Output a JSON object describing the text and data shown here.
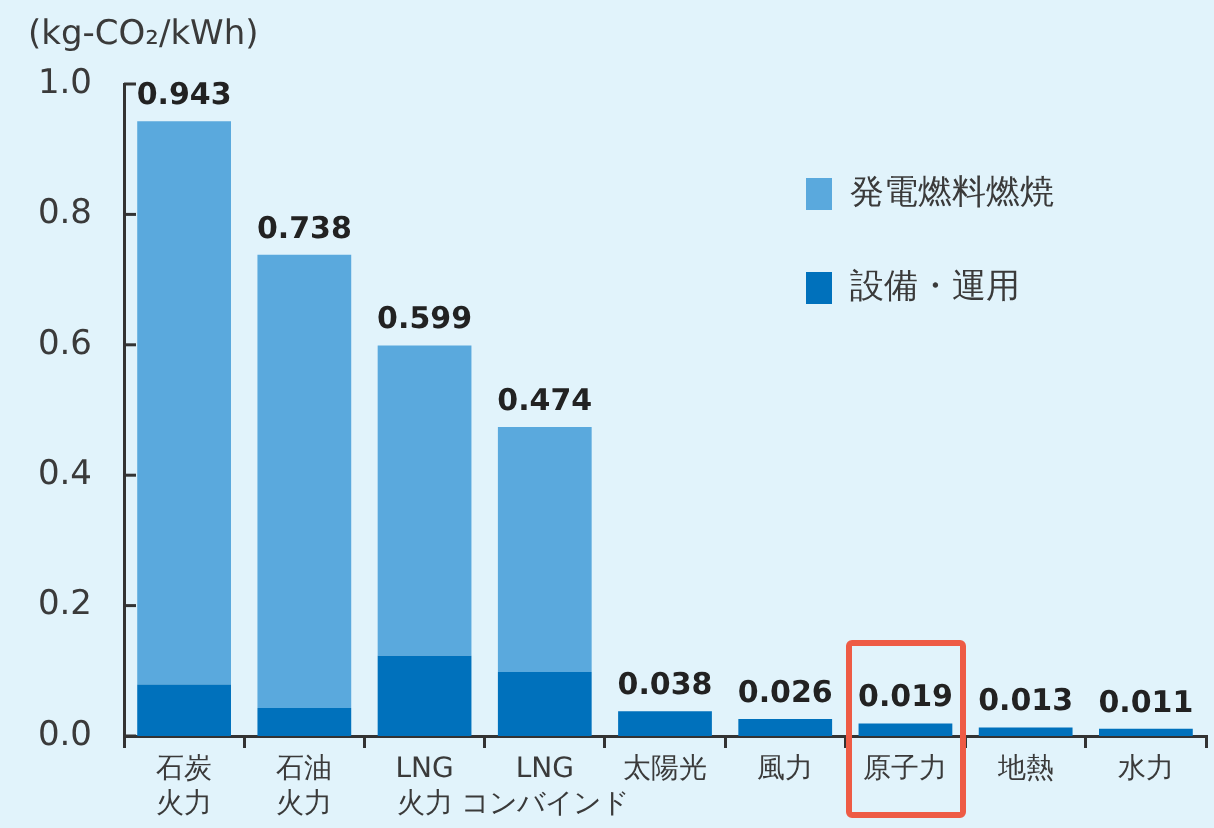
{
  "chart_data": {
    "type": "bar",
    "ylabel": "(kg-CO₂/kWh)",
    "categories": [
      "石炭火力",
      "石油火力",
      "LNG火力",
      "LNGコンバインド",
      "太陽光",
      "風力",
      "原子力",
      "地熱",
      "水力"
    ],
    "series": [
      {
        "name": "設備・運用",
        "color": "#0071bc",
        "values": [
          0.079,
          0.043,
          0.123,
          0.098,
          0.038,
          0.026,
          0.019,
          0.013,
          0.011
        ]
      },
      {
        "name": "発電燃料燃焼",
        "color": "#5aa9dd",
        "values": [
          0.864,
          0.695,
          0.476,
          0.376,
          null,
          null,
          null,
          null,
          null
        ]
      }
    ],
    "stacked": true,
    "totals": [
      "0.943",
      "0.738",
      "0.599",
      "0.474",
      "0.038",
      "0.026",
      "0.019",
      "0.013",
      "0.011"
    ],
    "ylim": [
      0,
      1
    ],
    "yticks": [
      {
        "value": 0,
        "label": "0.0"
      },
      0.2,
      0.4,
      0.6,
      0.8,
      {
        "value": 1,
        "label": "1.0"
      }
    ],
    "legend": "top right"
  }
}
